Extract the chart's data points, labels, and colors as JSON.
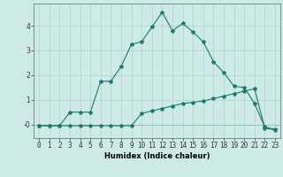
{
  "xlabel": "Humidex (Indice chaleur)",
  "ylabel": "",
  "background_color": "#ceeae7",
  "line_color": "#1a7a6e",
  "grid_color": "#aed4d0",
  "red_line_color": "#cc4444",
  "xlim": [
    -0.5,
    23.5
  ],
  "ylim": [
    -0.55,
    4.9
  ],
  "yticks": [
    0,
    1,
    2,
    3,
    4
  ],
  "ytick_labels": [
    "-0",
    "1",
    "2",
    "3",
    "4"
  ],
  "xticks": [
    0,
    1,
    2,
    3,
    4,
    5,
    6,
    7,
    8,
    9,
    10,
    11,
    12,
    13,
    14,
    15,
    16,
    17,
    18,
    19,
    20,
    21,
    22,
    23
  ],
  "series1_x": [
    0,
    1,
    2,
    3,
    4,
    5,
    6,
    7,
    8,
    9,
    10,
    11,
    12,
    13,
    14,
    15,
    16,
    17,
    18,
    19,
    20,
    21,
    22,
    23
  ],
  "series1_y": [
    -0.05,
    -0.05,
    -0.05,
    0.5,
    0.5,
    0.5,
    1.75,
    1.75,
    2.35,
    3.25,
    3.35,
    3.95,
    4.55,
    3.8,
    4.1,
    3.75,
    3.35,
    2.55,
    2.1,
    1.55,
    1.5,
    0.85,
    -0.1,
    -0.2
  ],
  "series2_x": [
    0,
    1,
    2,
    3,
    4,
    5,
    6,
    7,
    8,
    9,
    10,
    11,
    12,
    13,
    14,
    15,
    16,
    17,
    18,
    19,
    20,
    21,
    22,
    23
  ],
  "series2_y": [
    -0.05,
    -0.05,
    -0.05,
    -0.05,
    -0.05,
    -0.05,
    -0.05,
    -0.05,
    -0.05,
    -0.05,
    0.45,
    0.55,
    0.65,
    0.75,
    0.85,
    0.9,
    0.95,
    1.05,
    1.15,
    1.25,
    1.35,
    1.45,
    -0.15,
    -0.22
  ],
  "marker": "*",
  "marker_size": 3,
  "linewidth": 0.8,
  "axis_fontsize": 6,
  "tick_fontsize": 5.5
}
